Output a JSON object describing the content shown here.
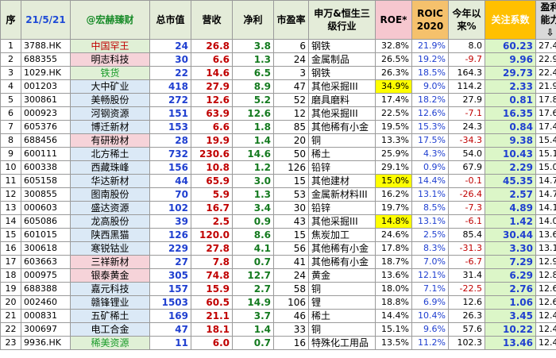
{
  "headers": {
    "seq": "序",
    "date": "21/5/21",
    "brand": "@宏赫臻财",
    "mcap": "总市值",
    "rev": "营收",
    "np": "净利",
    "pe": "市盈率",
    "industry": "申万&恒生三级行业",
    "roe": "ROE*",
    "roic": "ROIC 2020",
    "ytd": "今年以来%",
    "focus": "关注系数",
    "prof": "盈利能力⇩"
  },
  "rows": [
    {
      "seq": "1",
      "code": "3788.HK",
      "name": "中国罕王",
      "mcap": "24",
      "rev": "26.8",
      "np": "3.8",
      "pe": "6",
      "industry": "钢铁",
      "roe": "32.8%",
      "roic": "21.9%",
      "ytd": "8.0",
      "focus": "60.23",
      "prof": "27.4%"
    },
    {
      "seq": "2",
      "code": "688355",
      "name": "明志科技",
      "mcap": "30",
      "rev": "6.6",
      "np": "1.3",
      "pe": "24",
      "industry": "金属制品",
      "roe": "26.5%",
      "roic": "19.2%",
      "ytd": "-9.7",
      "focus": "9.96",
      "prof": "22.9%"
    },
    {
      "seq": "3",
      "code": "1029.HK",
      "name": "铁货",
      "mcap": "22",
      "rev": "14.6",
      "np": "6.5",
      "pe": "3",
      "industry": "钢铁",
      "roe": "26.3%",
      "roic": "18.5%",
      "ytd": "164.3",
      "focus": "29.73",
      "prof": "22.4%"
    },
    {
      "seq": "4",
      "code": "001203",
      "name": "大中矿业",
      "mcap": "418",
      "rev": "27.9",
      "np": "8.9",
      "pe": "47",
      "industry": "其他采掘III",
      "roe": "34.9%",
      "roic": "9.0%",
      "ytd": "114.2",
      "focus": "2.33",
      "prof": "21.9%"
    },
    {
      "seq": "5",
      "code": "300861",
      "name": "美畅股份",
      "mcap": "272",
      "rev": "12.6",
      "np": "5.2",
      "pe": "52",
      "industry": "磨具磨料",
      "roe": "17.4%",
      "roic": "18.2%",
      "ytd": "27.9",
      "focus": "0.81",
      "prof": "17.8%"
    },
    {
      "seq": "6",
      "code": "000923",
      "name": "河钢资源",
      "mcap": "151",
      "rev": "63.9",
      "np": "12.6",
      "pe": "12",
      "industry": "其他采掘III",
      "roe": "22.5%",
      "roic": "12.6%",
      "ytd": "-7.1",
      "focus": "16.35",
      "prof": "17.6%"
    },
    {
      "seq": "7",
      "code": "605376",
      "name": "博迁新材",
      "mcap": "153",
      "rev": "6.6",
      "np": "1.8",
      "pe": "85",
      "industry": "其他稀有小金",
      "roe": "19.5%",
      "roic": "15.3%",
      "ytd": "24.3",
      "focus": "0.84",
      "prof": "17.4%"
    },
    {
      "seq": "8",
      "code": "688456",
      "name": "有研粉材",
      "mcap": "28",
      "rev": "19.9",
      "np": "1.4",
      "pe": "20",
      "industry": "铜",
      "roe": "13.3%",
      "roic": "17.5%",
      "ytd": "-34.3",
      "focus": "9.38",
      "prof": "15.4%"
    },
    {
      "seq": "9",
      "code": "600111",
      "name": "北方稀土",
      "mcap": "732",
      "rev": "230.6",
      "np": "14.6",
      "pe": "50",
      "industry": "稀土",
      "roe": "25.9%",
      "roic": "4.3%",
      "ytd": "54.0",
      "focus": "10.43",
      "prof": "15.1%"
    },
    {
      "seq": "10",
      "code": "600338",
      "name": "西藏珠峰",
      "mcap": "156",
      "rev": "10.8",
      "np": "1.2",
      "pe": "126",
      "industry": "铅锌",
      "roe": "29.1%",
      "roic": "0.9%",
      "ytd": "67.9",
      "focus": "2.29",
      "prof": "15.0%"
    },
    {
      "seq": "11",
      "code": "605158",
      "name": "华达新材",
      "mcap": "44",
      "rev": "65.9",
      "np": "3.0",
      "pe": "15",
      "industry": "其他建材",
      "roe": "15.0%",
      "roic": "14.4%",
      "ytd": "-0.1",
      "focus": "45.35",
      "prof": "14.7%"
    },
    {
      "seq": "12",
      "code": "300855",
      "name": "图南股份",
      "mcap": "70",
      "rev": "5.9",
      "np": "1.3",
      "pe": "53",
      "industry": "金属新材料III",
      "roe": "16.2%",
      "roic": "13.1%",
      "ytd": "-26.4",
      "focus": "2.57",
      "prof": "14.7%"
    },
    {
      "seq": "13",
      "code": "000603",
      "name": "盛达资源",
      "mcap": "102",
      "rev": "16.7",
      "np": "3.4",
      "pe": "30",
      "industry": "铅锌",
      "roe": "19.7%",
      "roic": "8.5%",
      "ytd": "-7.3",
      "focus": "4.89",
      "prof": "14.1%"
    },
    {
      "seq": "14",
      "code": "605086",
      "name": "龙高股份",
      "mcap": "39",
      "rev": "2.5",
      "np": "0.9",
      "pe": "43",
      "industry": "其他采掘III",
      "roe": "14.8%",
      "roic": "13.1%",
      "ytd": "-6.1",
      "focus": "1.42",
      "prof": "14.0%"
    },
    {
      "seq": "15",
      "code": "601015",
      "name": "陕西黑猫",
      "mcap": "126",
      "rev": "120.0",
      "np": "8.6",
      "pe": "15",
      "industry": "焦炭加工",
      "roe": "24.6%",
      "roic": "2.5%",
      "ytd": "85.4",
      "focus": "30.44",
      "prof": "13.6%"
    },
    {
      "seq": "16",
      "code": "300618",
      "name": "寒锐钴业",
      "mcap": "229",
      "rev": "27.8",
      "np": "4.1",
      "pe": "56",
      "industry": "其他稀有小金",
      "roe": "17.8%",
      "roic": "8.3%",
      "ytd": "-31.3",
      "focus": "3.30",
      "prof": "13.1%"
    },
    {
      "seq": "17",
      "code": "603663",
      "name": "三祥新材",
      "mcap": "27",
      "rev": "7.8",
      "np": "0.7",
      "pe": "41",
      "industry": "其他稀有小金",
      "roe": "18.7%",
      "roic": "7.0%",
      "ytd": "-6.7",
      "focus": "7.29",
      "prof": "12.9%"
    },
    {
      "seq": "18",
      "code": "000975",
      "name": "银泰黄金",
      "mcap": "305",
      "rev": "74.8",
      "np": "12.7",
      "pe": "24",
      "industry": "黄金",
      "roe": "13.6%",
      "roic": "12.1%",
      "ytd": "31.4",
      "focus": "6.29",
      "prof": "12.8%"
    },
    {
      "seq": "19",
      "code": "688388",
      "name": "嘉元科技",
      "mcap": "157",
      "rev": "15.9",
      "np": "2.7",
      "pe": "58",
      "industry": "铜",
      "roe": "18.0%",
      "roic": "7.1%",
      "ytd": "-22.5",
      "focus": "2.76",
      "prof": "12.6%"
    },
    {
      "seq": "20",
      "code": "002460",
      "name": "赣锋锂业",
      "mcap": "1503",
      "rev": "60.5",
      "np": "14.9",
      "pe": "106",
      "industry": "锂",
      "roe": "18.8%",
      "roic": "6.9%",
      "ytd": "12.6",
      "focus": "1.06",
      "prof": "12.6%"
    },
    {
      "seq": "21",
      "code": "000831",
      "name": "五矿稀土",
      "mcap": "169",
      "rev": "21.1",
      "np": "3.7",
      "pe": "46",
      "industry": "稀土",
      "roe": "14.4%",
      "roic": "10.4%",
      "ytd": "26.3",
      "focus": "3.45",
      "prof": "12.4%"
    },
    {
      "seq": "22",
      "code": "300697",
      "name": "电工合金",
      "mcap": "47",
      "rev": "18.1",
      "np": "1.4",
      "pe": "33",
      "industry": "铜",
      "roe": "15.1%",
      "roic": "9.6%",
      "ytd": "57.6",
      "focus": "10.22",
      "prof": "12.4%"
    },
    {
      "seq": "23",
      "code": "9936.HK",
      "name": "稀美资源",
      "mcap": "11",
      "rev": "6.0",
      "np": "0.7",
      "pe": "16",
      "industry": "特殊化工用品",
      "roe": "13.5%",
      "roic": "11.2%",
      "ytd": "102.3",
      "focus": "13.46",
      "prof": "12.4%"
    }
  ],
  "row_styles": {
    "name_bg": [
      "c-green",
      "c-pink",
      "c-green",
      "c-lblue",
      "c-lblue",
      "c-lblue",
      "c-lblue",
      "c-pink",
      "c-lblue",
      "c-lblue",
      "c-lblue",
      "c-lblue",
      "c-lblue",
      "c-lblue",
      "c-lblue",
      "c-lblue",
      "c-pink",
      "c-pink",
      "c-lblue",
      "c-lblue",
      "c-lblue",
      "c-lblue",
      "c-green"
    ],
    "name_color": [
      "red-text",
      "black-text",
      "green-text",
      "black-text",
      "black-text",
      "black-text",
      "black-text",
      "black-text",
      "black-text",
      "black-text",
      "black-text",
      "black-text",
      "black-text",
      "black-text",
      "black-text",
      "black-text",
      "black-text",
      "black-text",
      "black-text",
      "black-text",
      "black-text",
      "black-text",
      "green-text"
    ],
    "roe_highlight": [
      "",
      "",
      "",
      "hl-yellow",
      "",
      "",
      "",
      "",
      "",
      "",
      "hl-yellow",
      "",
      "",
      "hl-yellow",
      "",
      "",
      "",
      "",
      "",
      "",
      "",
      "",
      ""
    ],
    "ytd_color": [
      "black-text",
      "red-text",
      "black-text",
      "black-text",
      "black-text",
      "red-text",
      "black-text",
      "red-text",
      "black-text",
      "black-text",
      "red-text",
      "red-text",
      "red-text",
      "red-text",
      "black-text",
      "red-text",
      "red-text",
      "black-text",
      "red-text",
      "black-text",
      "black-text",
      "black-text",
      "black-text"
    ]
  }
}
